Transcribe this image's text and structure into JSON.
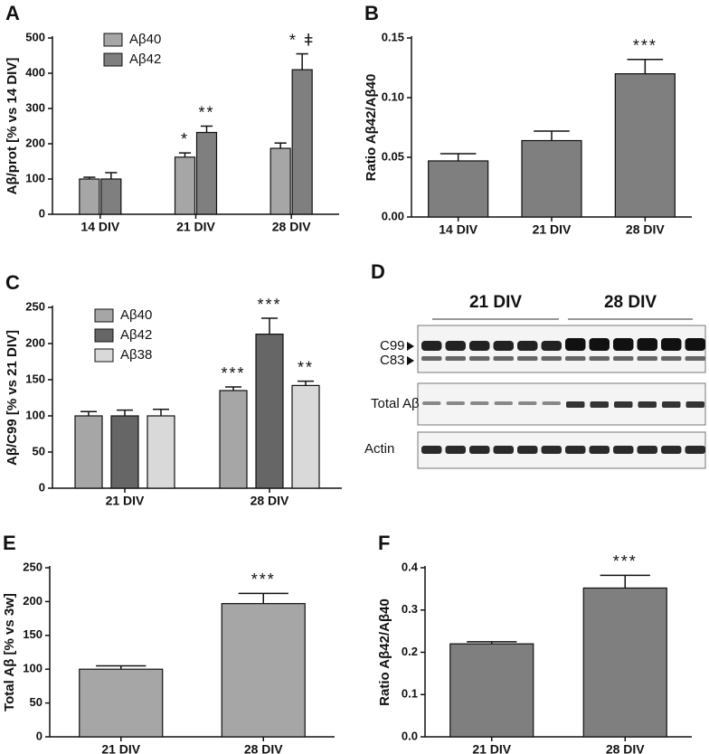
{
  "chart_data": [
    {
      "type": "bar",
      "panel": "A",
      "ylabel": "Aβ/prot [% vs 14 DIV]",
      "categories": [
        "14 DIV",
        "21 DIV",
        "28 DIV"
      ],
      "series": [
        {
          "name": "Aβ40",
          "color": "#a6a6a6",
          "values": [
            100,
            162,
            187
          ],
          "errors": [
            5,
            12,
            15
          ],
          "annotations": [
            null,
            "*",
            null
          ]
        },
        {
          "name": "Aβ42",
          "color": "#7f7f7f",
          "values": [
            100,
            232,
            410
          ],
          "errors": [
            18,
            18,
            45
          ],
          "annotations": [
            null,
            "**",
            "* ǂ"
          ]
        }
      ],
      "ylim": [
        0,
        500
      ],
      "yticks": [
        0,
        100,
        200,
        300,
        400,
        500
      ],
      "legend": "upper left"
    },
    {
      "type": "bar",
      "panel": "B",
      "ylabel": "Ratio Aβ42/Aβ40",
      "categories": [
        "14 DIV",
        "21 DIV",
        "28 DIV"
      ],
      "values": [
        0.047,
        0.064,
        0.12
      ],
      "errors": [
        0.006,
        0.008,
        0.012
      ],
      "annotations": [
        null,
        null,
        "***"
      ],
      "color": "#7f7f7f",
      "ylim": [
        0,
        0.15
      ],
      "yticks": [
        {
          "value": 0,
          "label": "0.00"
        },
        0.05,
        {
          "value": 0.1,
          "label": "0.10"
        },
        0.15
      ]
    },
    {
      "type": "bar",
      "panel": "C",
      "ylabel": "Aβ/C99 [% vs 21 DIV]",
      "categories": [
        "21 DIV",
        "28 DIV"
      ],
      "series": [
        {
          "name": "Aβ40",
          "color": "#a6a6a6",
          "values": [
            100,
            135
          ],
          "errors": [
            6,
            5
          ],
          "annotations": [
            null,
            "***"
          ]
        },
        {
          "name": "Aβ42",
          "color": "#666666",
          "values": [
            100,
            213
          ],
          "errors": [
            8,
            22
          ],
          "annotations": [
            null,
            "***"
          ]
        },
        {
          "name": "Aβ38",
          "color": "#d9d9d9",
          "values": [
            100,
            142
          ],
          "errors": [
            9,
            6
          ],
          "annotations": [
            null,
            "**"
          ]
        }
      ],
      "ylim": [
        0,
        250
      ],
      "yticks": [
        0,
        50,
        100,
        150,
        200,
        250
      ],
      "legend": "upper left"
    },
    {
      "type": "bar",
      "panel": "E",
      "ylabel": "Total Aβ [% vs 3w]",
      "categories": [
        "21 DIV",
        "28 DIV"
      ],
      "values": [
        100,
        197
      ],
      "errors": [
        5,
        15
      ],
      "annotations": [
        null,
        "***"
      ],
      "color": "#a6a6a6",
      "ylim": [
        0,
        250
      ],
      "yticks": [
        0,
        50,
        100,
        150,
        200,
        250
      ]
    },
    {
      "type": "bar",
      "panel": "F",
      "ylabel": "Ratio Aβ42/Aβ40",
      "categories": [
        "21 DIV",
        "28 DIV"
      ],
      "values": [
        0.22,
        0.352
      ],
      "errors": [
        0.005,
        0.03
      ],
      "annotations": [
        null,
        "***"
      ],
      "color": "#7f7f7f",
      "ylim": [
        0,
        0.4
      ],
      "yticks": [
        {
          "value": 0,
          "label": "0.0"
        },
        0.1,
        0.2,
        0.3,
        0.4
      ]
    }
  ],
  "blot": {
    "panel": "D",
    "groups": [
      "21 DIV",
      "28 DIV"
    ],
    "rows": [
      "C99",
      "C83",
      "Total Aβ",
      "Actin"
    ]
  }
}
